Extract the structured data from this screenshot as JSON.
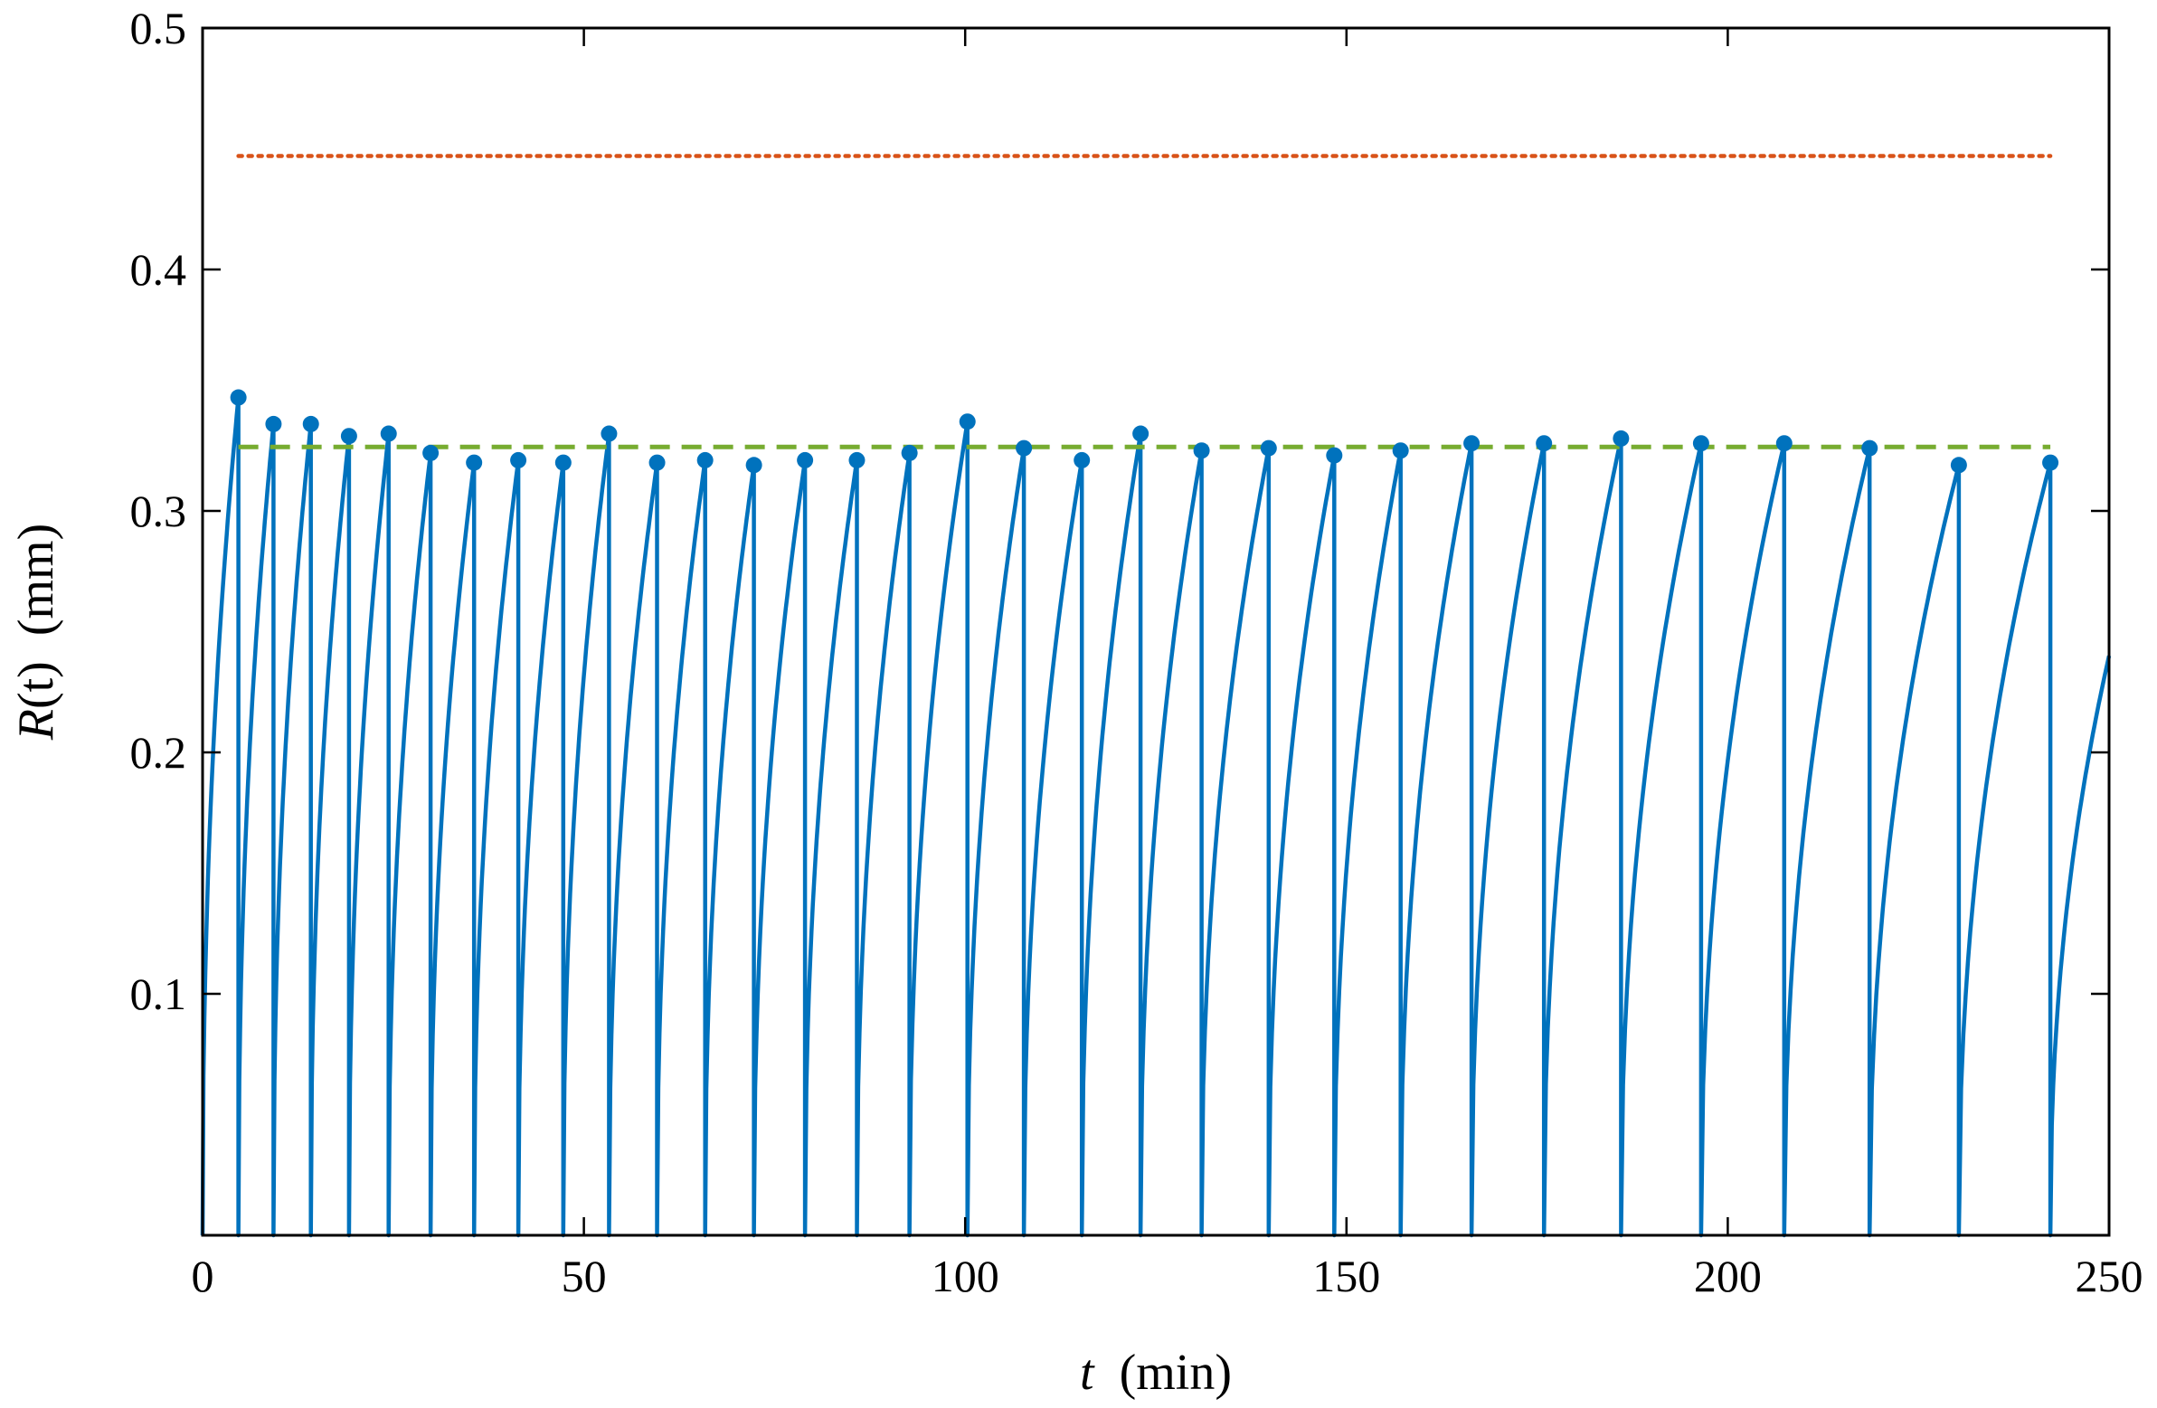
{
  "chart_data": {
    "type": "line",
    "xlabel": {
      "var": "t",
      "unit": "(min)"
    },
    "ylabel": {
      "var": "R",
      "arg": "(t)",
      "unit": "(mm)"
    },
    "xlim": [
      0,
      250
    ],
    "ylim": [
      0,
      0.5
    ],
    "x_ticks": [
      0,
      50,
      100,
      150,
      200,
      250
    ],
    "x_tick_labels": [
      "0",
      "50",
      "100",
      "150",
      "200",
      "250"
    ],
    "y_ticks": [
      0.1,
      0.2,
      0.3,
      0.4,
      0.5
    ],
    "y_tick_labels": [
      "0.1",
      "0.2",
      "0.3",
      "0.4",
      "0.5"
    ],
    "grid": false,
    "colors": {
      "growth": "#0072BD",
      "upper": "#D95319",
      "mean": "#77AC30"
    },
    "series": [
      {
        "style": "solid",
        "color": "#0072BD",
        "start_t": 0,
        "peaks": [
          {
            "t": 4.7,
            "R": 0.347
          },
          {
            "t": 9.3,
            "R": 0.336
          },
          {
            "t": 14.2,
            "R": 0.336
          },
          {
            "t": 19.2,
            "R": 0.331
          },
          {
            "t": 24.4,
            "R": 0.332
          },
          {
            "t": 29.9,
            "R": 0.324
          },
          {
            "t": 35.6,
            "R": 0.32
          },
          {
            "t": 41.4,
            "R": 0.321
          },
          {
            "t": 47.3,
            "R": 0.32
          },
          {
            "t": 53.3,
            "R": 0.332
          },
          {
            "t": 59.6,
            "R": 0.32
          },
          {
            "t": 65.9,
            "R": 0.321
          },
          {
            "t": 72.3,
            "R": 0.319
          },
          {
            "t": 79.0,
            "R": 0.321
          },
          {
            "t": 85.8,
            "R": 0.321
          },
          {
            "t": 92.7,
            "R": 0.324
          },
          {
            "t": 100.3,
            "R": 0.337
          },
          {
            "t": 107.7,
            "R": 0.326
          },
          {
            "t": 115.3,
            "R": 0.321
          },
          {
            "t": 123.0,
            "R": 0.332
          },
          {
            "t": 131.0,
            "R": 0.325
          },
          {
            "t": 139.8,
            "R": 0.326
          },
          {
            "t": 148.4,
            "R": 0.323
          },
          {
            "t": 157.1,
            "R": 0.325
          },
          {
            "t": 166.4,
            "R": 0.328
          },
          {
            "t": 175.9,
            "R": 0.328
          },
          {
            "t": 186.0,
            "R": 0.33
          },
          {
            "t": 196.5,
            "R": 0.328
          },
          {
            "t": 207.4,
            "R": 0.328
          },
          {
            "t": 218.6,
            "R": 0.326
          },
          {
            "t": 230.3,
            "R": 0.319
          },
          {
            "t": 242.3,
            "R": 0.32
          }
        ],
        "end": {
          "t": 250,
          "R": 0.24
        }
      },
      {
        "style": "dotted",
        "color": "#D95319",
        "x": [
          4.7,
          242.3
        ],
        "y": [
          0.447,
          0.447
        ]
      },
      {
        "style": "dashed",
        "color": "#77AC30",
        "x": [
          4.7,
          242.3
        ],
        "y": [
          0.3265,
          0.3265
        ]
      }
    ]
  }
}
